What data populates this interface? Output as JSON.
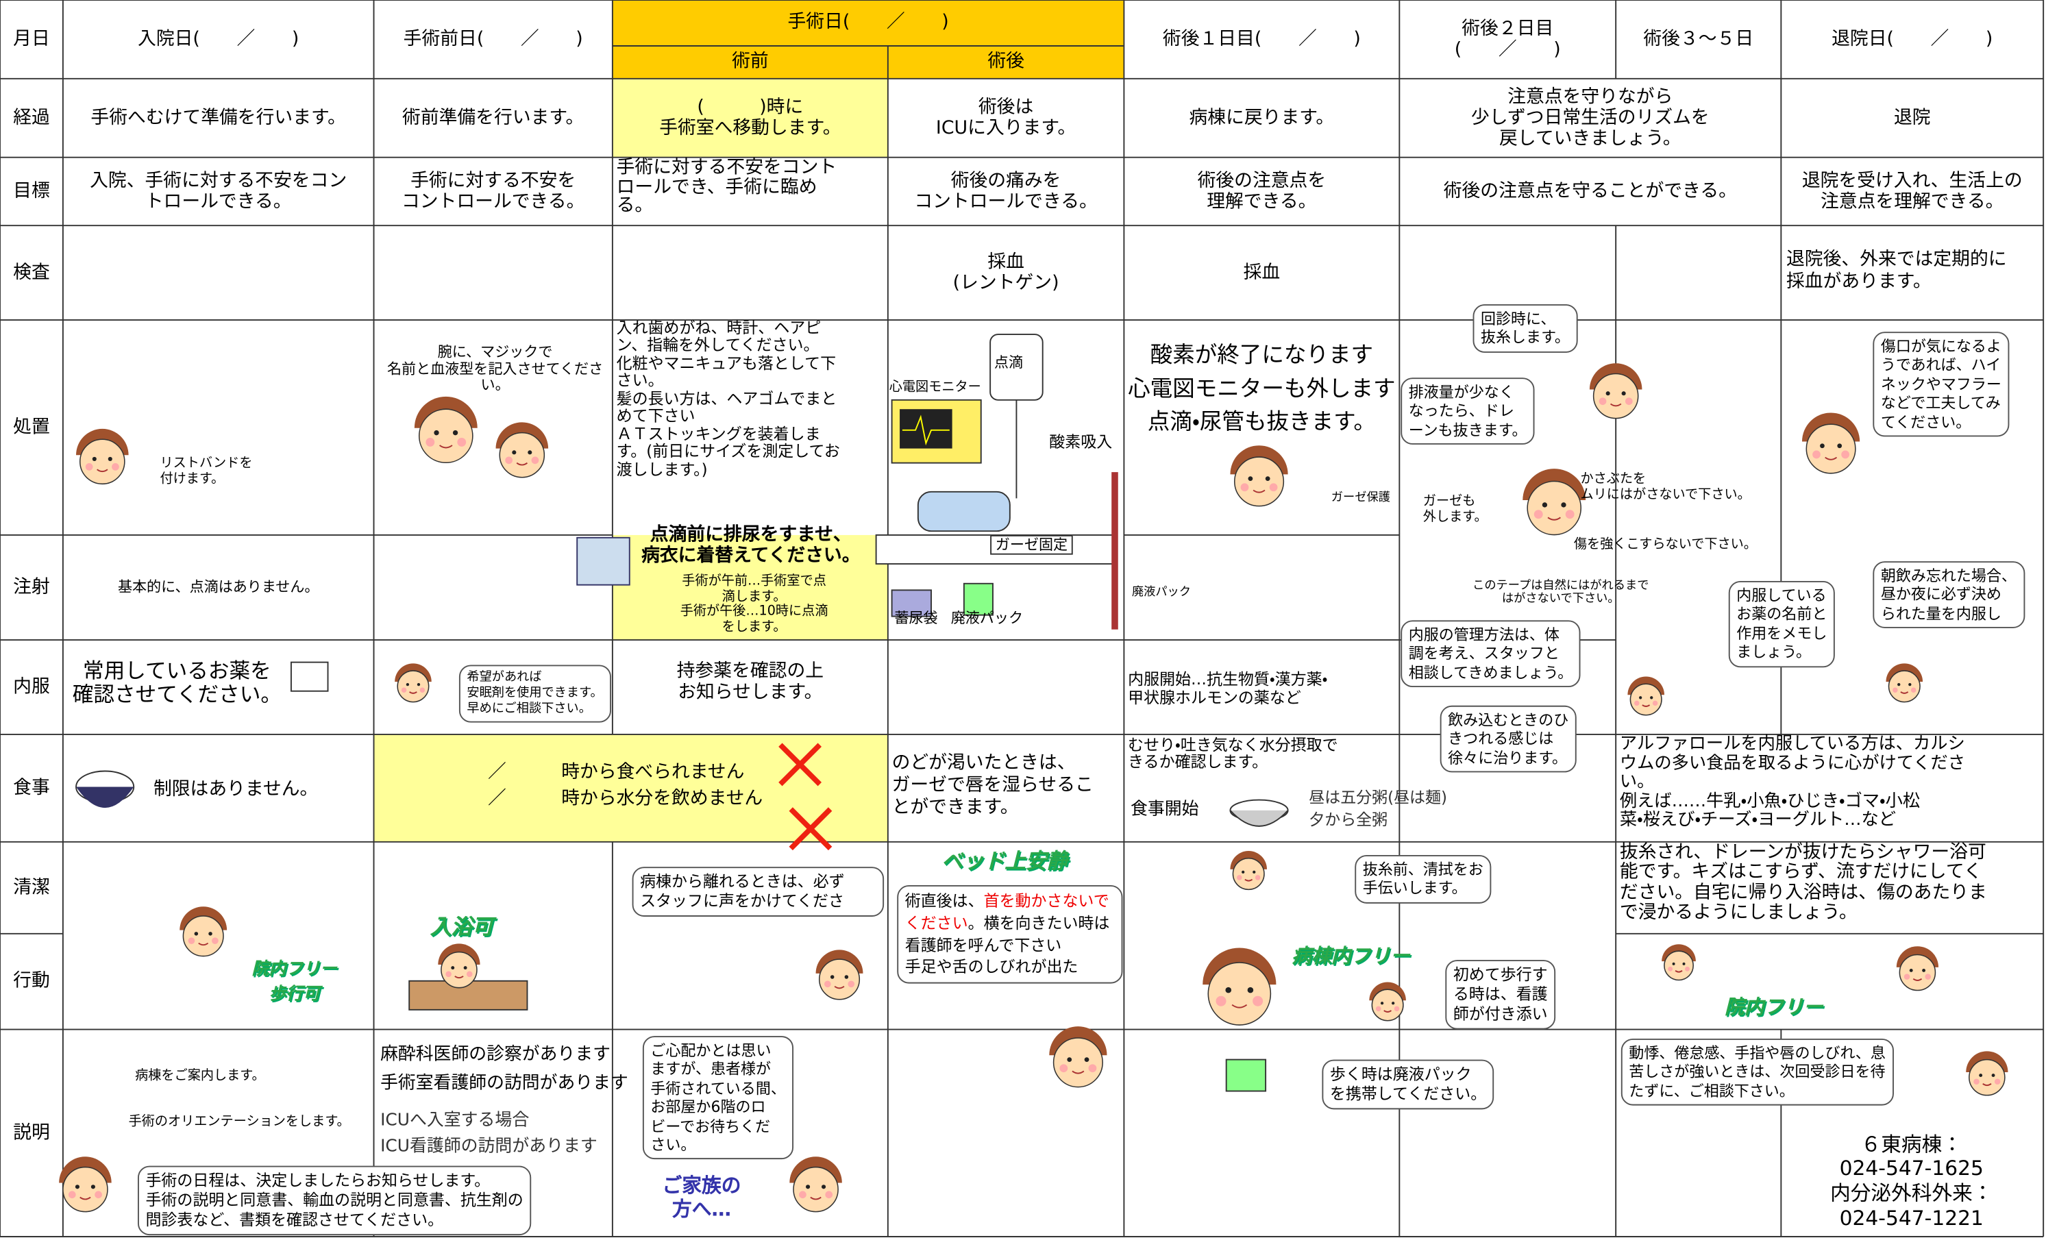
{
  "header": {
    "date": "月日",
    "admission": "入院日(　　／　　)",
    "pre_op_day": "手術前日(　　／　　)",
    "surgery_day": "手術日(　　／　　)",
    "before_surgery": "術前",
    "after_surgery": "術後",
    "post_op_day1": "術後１日目(　　／　　)",
    "post_op_day2": "術後２日目\n(　　／　　)",
    "post_op_day3_5": "術後３～５日",
    "discharge_day": "退院日(　　／　　)"
  },
  "row_labels": [
    "経過",
    "目標",
    "検査",
    "処置",
    "注射",
    "内服",
    "食事",
    "清潔",
    "行動",
    "説明"
  ],
  "progress": [
    "手術へむけて準備を行います。",
    "術前準備を行います。",
    "(　　　)時に\n手術室へ移動します。",
    "術後は\nICUに入ります。",
    "病棟に戻ります。",
    "注意点を守りながら\n少しずつ日常生活のリズムを\n戻していきましょう。",
    "退院"
  ],
  "goals": [
    "入院、手術に対する不安をコン\nトロールできる。",
    "手術に対する不安を\nコントロールできる。",
    "手術に対する不安をコント\nロールでき、手術に臨め\nる。",
    "術後の痛みを\nコントロールできる。",
    "術後の注意点を\n理解できる。",
    "術後の注意点を守ることができる。",
    "退院を受け入れ、生活上の\n注意点を理解できる。"
  ],
  "tests": [
    "採血\n(レントゲン)",
    "採血",
    "退院後、外来では定期的に\n採血があります。"
  ],
  "treatment": [
    "リストバンドを\n付けます。",
    "腕に、マジックで\n名前と血液型を記入させてください。",
    "入れ歯めがね、時計、ヘアピ\nン、指輪を外してください。\n化粧やマニキュアも落として下\nさい。\n髪の長い方は、ヘアゴムでまと\nめて下さい\nＡＴストッキングを装着しま\nす。(前日にサイズを測定してお\n渡しします。)",
    "点滴",
    "心電図モニター",
    "酸素吸入",
    "ガーゼ固定",
    "蓄尿袋",
    "廃液パック",
    "酸素が終了になります\n心電図モニターも外します\n点滴・尿管も抜きます。",
    "ガーゼ保護",
    "廃液パック",
    "回診時に、\n抜糸します。",
    "排液量が少なく\nなったら、ドレ\nーンも抜きます。",
    "ガーゼも\n外します。",
    "かさぶたを\nムリにはがさないで下さい。",
    "傷を強くこすらないで下さい。",
    "このテープは自然にはがれるまで\nはがさないで下さい。",
    "傷口が気になるよ\nうであれば、ハイ\nネックやマフラー\nなどで工夫してみ\nてください。"
  ],
  "injection": [
    "基本的に、点滴はありません。",
    "点滴前に排尿をすませ、\n病衣に着替えてください。",
    "手術が午前…手術室で点\n滴します。\n手術が午後…10時に点滴\nをします。",
    "内服の管理方法は、体\n調を考え、スタッフと\n相談してきめましょう。",
    "内服している\nお薬の名前と\n作用をメモし\nましょう。",
    "朝飲み忘れた場合、\n昼か夜に必ず決め\nられた量を内服し"
  ],
  "medication": [
    "常用しているお薬を\n確認させてください。",
    "希望があれば\n安眠剤を使用できます。\n早めにご相談下さい。",
    "持参薬を確認の上\nお知らせします。",
    "内服開始…抗生物質・漢方薬・\n甲状腺ホルモンの薬など",
    "飲み込むときのひ\nきつれる感じは\n徐々に治ります。"
  ],
  "meals": [
    "制限はありません。",
    "／　　　時から食べられません\n／　　　時から水分を飲めません",
    "のどが渇いたときは、\nガーゼで唇を湿らせるこ\nとができます。",
    "むせり・吐き気なく水分摂取で\nきるか確認します。",
    "食事開始",
    "昼は五分粥(昼は麺)\n夕から全粥",
    "アルファロールを内服している方は、カルシ\nウムの多い食品を取るように心がけてくださ\nい。\n例えば……牛乳・小魚・ひじき・ゴマ・小松\n菜・桜えび・チーズ・ヨーグルト…など"
  ],
  "hygiene_activity": [
    "入浴可",
    "院内フリー\n歩行可",
    "病棟から離れるときは、必ず\nスタッフに声をかけてくださ",
    "ベッド上安静",
    "術直後は、",
    "首を動かさないでください",
    "。横を向きたい時は看護師を呼んで下さい\n手足や舌のしびれが出た",
    "抜糸前、清拭をお\n手伝いします。",
    "病棟内フリー",
    "初めて歩行す\nる時は、看護\n師が付き添い",
    "抜糸され、ドレーンが抜けたらシャワー浴可\n能です。キズはこすらず、流すだけにしてく\nださい。自宅に帰り入浴時は、傷のあたりま\nで浸かるようにしましょう。",
    "院内フリー"
  ],
  "explanation": [
    "病棟をご案内します。",
    "手術のオリエンテーションをします。",
    "手術の日程は、決定しましたらお知らせします。\n手術の説明と同意書、輸血の説明と同意書、抗生剤の\n問診表など、書類を確認させてください。",
    "麻酔科医師の診察があります\n手術室看護師の訪問があります",
    "ICUへ入室する場合\nICU看護師の訪問があります",
    "ご心配かとは思い\nますが、患者様が\n手術されている間、\nお部屋か6階のロ\nビーでお待ちくだ\nさい。",
    "ご家族の\n方へ…",
    "歩く時は廃液パック\nを携帯してください。",
    "動悸、倦怠感、手指や唇のしびれ、息\n苦しさが強いときは、次回受診日を待\nたずに、ご相談下さい。",
    "６東病棟：\n024-547-1625\n内分泌外科外来：\n024-547-1221"
  ]
}
